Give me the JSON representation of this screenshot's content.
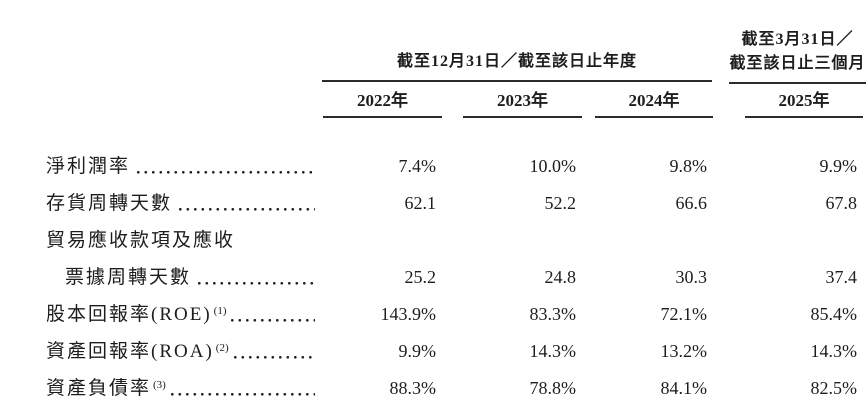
{
  "colors": {
    "background": "#ffffff",
    "text": "#1d1d1d",
    "rule": "#2b2b2b"
  },
  "table": {
    "header": {
      "period_annual": "截至12月31日／截至該日止年度",
      "period_quarter_line1": "截至3月31日／",
      "period_quarter_line2": "截至該日止三個月",
      "years": [
        "2022年",
        "2023年",
        "2024年",
        "2025年"
      ]
    },
    "rows": [
      {
        "label": "淨利潤率",
        "sup": "",
        "values": [
          "7.4%",
          "10.0%",
          "9.8%",
          "9.9%"
        ]
      },
      {
        "label": "存貨周轉天數",
        "sup": "",
        "values": [
          "62.1",
          "52.2",
          "66.6",
          "67.8"
        ]
      },
      {
        "label": "貿易應收款項及應收",
        "sup": "",
        "values": [
          "",
          "",
          "",
          ""
        ]
      },
      {
        "label": "票據周轉天數",
        "sup": "",
        "values": [
          "25.2",
          "24.8",
          "30.3",
          "37.4"
        ]
      },
      {
        "label": "股本回報率(ROE)",
        "sup": "(1)",
        "values": [
          "143.9%",
          "83.3%",
          "72.1%",
          "85.4%"
        ]
      },
      {
        "label": "資產回報率(ROA)",
        "sup": "(2)",
        "values": [
          "9.9%",
          "14.3%",
          "13.2%",
          "14.3%"
        ]
      },
      {
        "label": "資產負債率",
        "sup": "(3)",
        "values": [
          "88.3%",
          "78.8%",
          "84.1%",
          "82.5%"
        ]
      }
    ]
  }
}
